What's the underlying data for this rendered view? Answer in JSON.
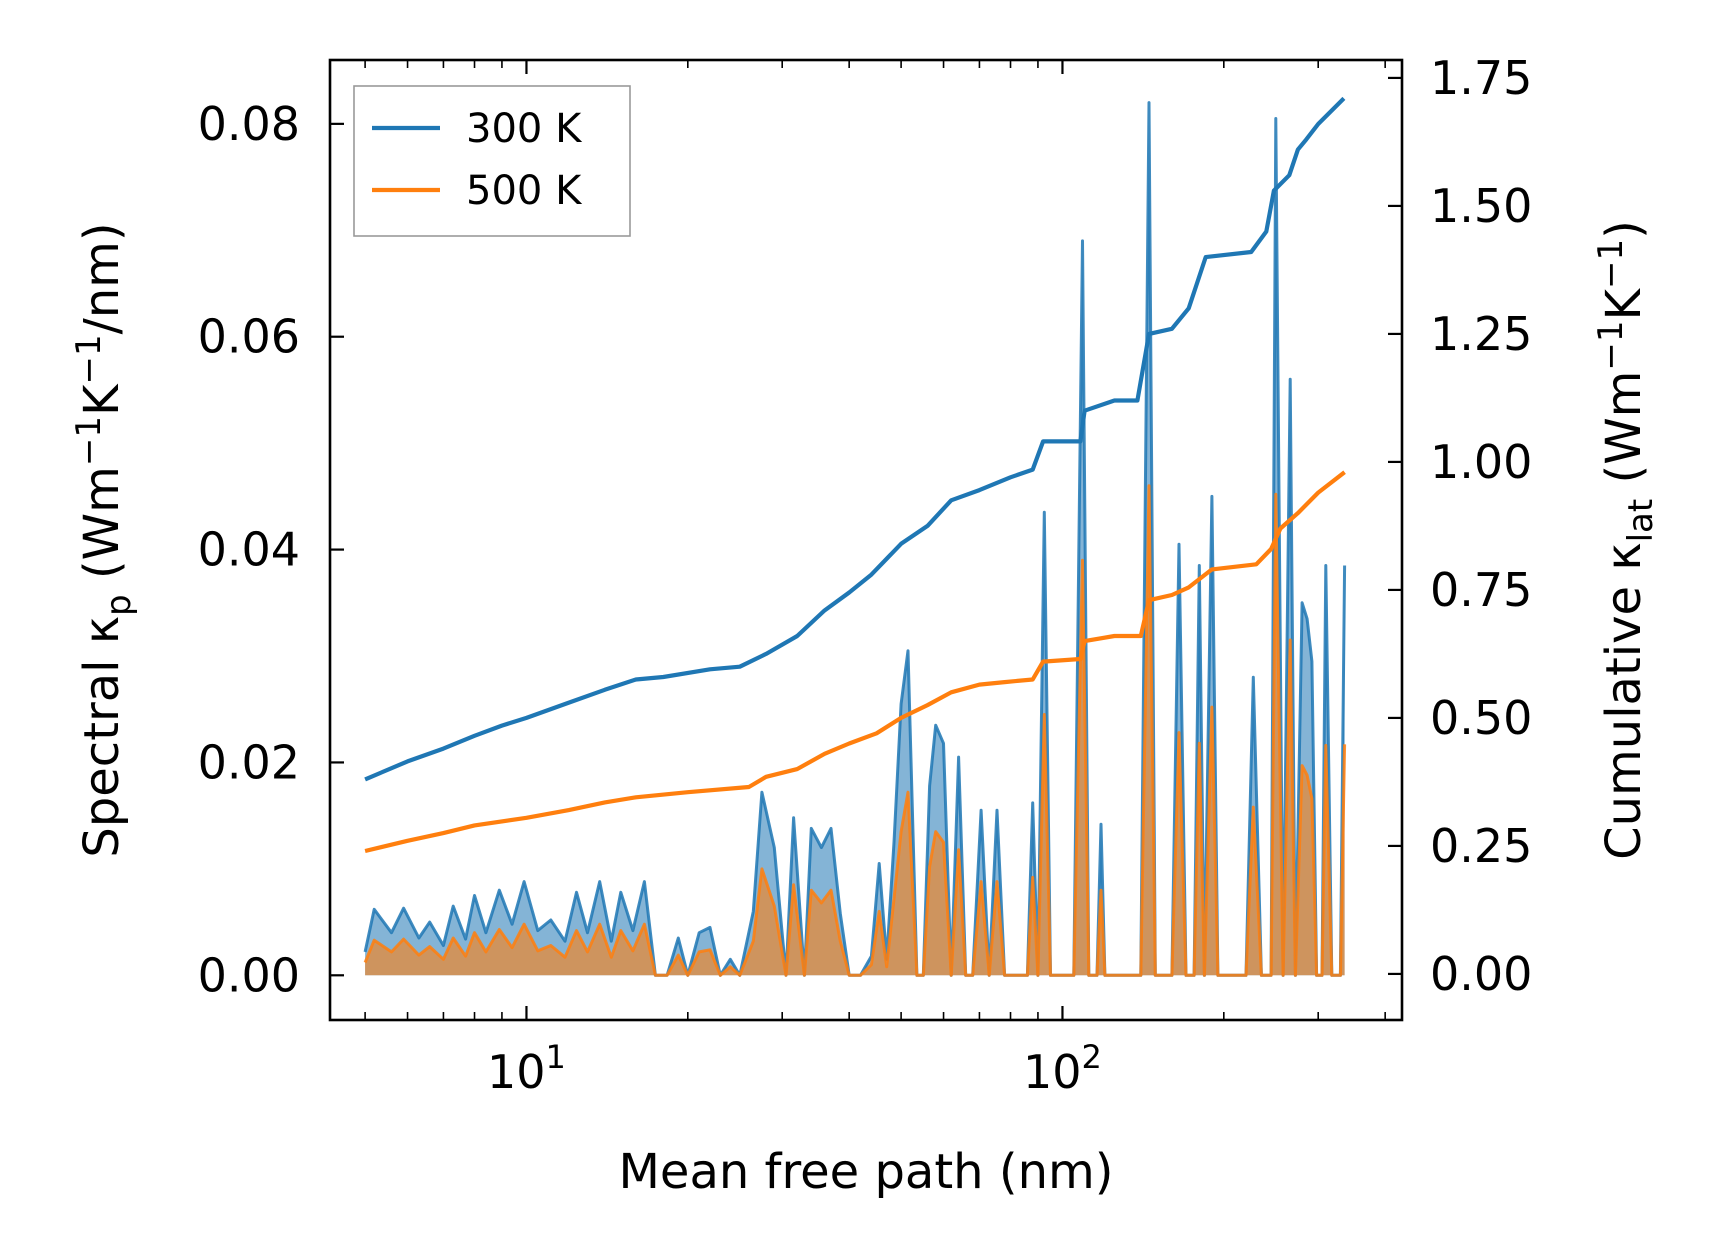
{
  "chart_data": {
    "type": "line",
    "title": "",
    "xlabel": "Mean free path (nm)",
    "xscale": "log",
    "xlim": [
      4.3,
      430
    ],
    "x_ticks": [
      {
        "value": 10,
        "base": "10",
        "exp": "1"
      },
      {
        "value": 100,
        "base": "10",
        "exp": "2"
      }
    ],
    "left_axis": {
      "label_parts": [
        "Spectral κ",
        "p",
        " (Wm",
        "−1",
        "K",
        "−1",
        "/nm)"
      ],
      "ylim": [
        -0.0042,
        0.086
      ],
      "ticks": [
        0.0,
        0.02,
        0.04,
        0.06,
        0.08
      ],
      "tick_labels": [
        "0.00",
        "0.02",
        "0.04",
        "0.06",
        "0.08"
      ]
    },
    "right_axis": {
      "label_parts": [
        "Cumulative κ",
        "lat",
        " (Wm",
        "−1",
        "K",
        "−1",
        ")"
      ],
      "ylim": [
        -0.09,
        1.785
      ],
      "ticks": [
        0,
        0.25,
        0.5,
        0.75,
        1.0,
        1.25,
        1.5,
        1.75
      ],
      "tick_labels": [
        "0.00",
        "0.25",
        "0.50",
        "0.75",
        "1.00",
        "1.25",
        "1.50",
        "1.75"
      ]
    },
    "legend": {
      "position": "top-left",
      "entries": [
        {
          "label": "300 K",
          "color": "#1f77b4"
        },
        {
          "label": "500 K",
          "color": "#ff7f0e"
        }
      ]
    },
    "series": [
      {
        "name": "300 K",
        "color": "#1f77b4",
        "cumulative": [
          [
            5.0,
            0.38
          ],
          [
            6.0,
            0.415
          ],
          [
            7.0,
            0.44
          ],
          [
            8.0,
            0.465
          ],
          [
            9.0,
            0.485
          ],
          [
            10.0,
            0.5
          ],
          [
            12.0,
            0.53
          ],
          [
            14.0,
            0.555
          ],
          [
            16.0,
            0.575
          ],
          [
            18.0,
            0.58
          ],
          [
            22.0,
            0.595
          ],
          [
            25.0,
            0.6
          ],
          [
            28.0,
            0.625
          ],
          [
            32.0,
            0.66
          ],
          [
            36.0,
            0.71
          ],
          [
            40.0,
            0.745
          ],
          [
            44.0,
            0.78
          ],
          [
            50.0,
            0.84
          ],
          [
            56.0,
            0.875
          ],
          [
            62.0,
            0.925
          ],
          [
            70.0,
            0.945
          ],
          [
            80.0,
            0.97
          ],
          [
            88.0,
            0.985
          ],
          [
            92.0,
            1.04
          ],
          [
            108.0,
            1.04
          ],
          [
            110.0,
            1.1
          ],
          [
            125.0,
            1.12
          ],
          [
            138.0,
            1.12
          ],
          [
            145.0,
            1.25
          ],
          [
            160.0,
            1.26
          ],
          [
            172.0,
            1.3
          ],
          [
            185.0,
            1.4
          ],
          [
            225.0,
            1.41
          ],
          [
            240.0,
            1.45
          ],
          [
            248.0,
            1.53
          ],
          [
            265.0,
            1.56
          ],
          [
            275.0,
            1.61
          ],
          [
            285.0,
            1.63
          ],
          [
            300.0,
            1.66
          ],
          [
            335.0,
            1.71
          ]
        ],
        "spectral": [
          [
            5.0,
            0.0022
          ],
          [
            5.2,
            0.0062
          ],
          [
            5.6,
            0.004
          ],
          [
            5.9,
            0.0063
          ],
          [
            6.3,
            0.0035
          ],
          [
            6.6,
            0.005
          ],
          [
            7.0,
            0.0028
          ],
          [
            7.3,
            0.0065
          ],
          [
            7.7,
            0.0034
          ],
          [
            8.0,
            0.0075
          ],
          [
            8.4,
            0.004
          ],
          [
            8.9,
            0.008
          ],
          [
            9.4,
            0.0048
          ],
          [
            9.9,
            0.0088
          ],
          [
            10.5,
            0.0042
          ],
          [
            11.1,
            0.0052
          ],
          [
            11.8,
            0.0032
          ],
          [
            12.4,
            0.0078
          ],
          [
            13.0,
            0.004
          ],
          [
            13.7,
            0.0088
          ],
          [
            14.4,
            0.0032
          ],
          [
            15.0,
            0.0078
          ],
          [
            15.8,
            0.0042
          ],
          [
            16.6,
            0.0088
          ],
          [
            17.4,
            0.0
          ],
          [
            18.3,
            0.0
          ],
          [
            19.2,
            0.0035
          ],
          [
            20.0,
            0.0
          ],
          [
            21.0,
            0.004
          ],
          [
            22.0,
            0.0045
          ],
          [
            23.0,
            0.0
          ],
          [
            24.0,
            0.0015
          ],
          [
            25.0,
            0.0
          ],
          [
            26.5,
            0.006
          ],
          [
            27.5,
            0.0172
          ],
          [
            29.0,
            0.012
          ],
          [
            30.5,
            0.0
          ],
          [
            31.5,
            0.0148
          ],
          [
            33.0,
            0.0
          ],
          [
            34.0,
            0.0138
          ],
          [
            35.5,
            0.012
          ],
          [
            37.0,
            0.0138
          ],
          [
            38.5,
            0.0058
          ],
          [
            40.0,
            0.0
          ],
          [
            42.0,
            0.0
          ],
          [
            44.0,
            0.0018
          ],
          [
            45.5,
            0.0105
          ],
          [
            47.0,
            0.0015
          ],
          [
            48.5,
            0.0125
          ],
          [
            50.0,
            0.0255
          ],
          [
            51.5,
            0.0305
          ],
          [
            53.5,
            0.0
          ],
          [
            55.0,
            0.0
          ],
          [
            56.5,
            0.0178
          ],
          [
            58.0,
            0.0235
          ],
          [
            60.0,
            0.0218
          ],
          [
            62.0,
            0.0
          ],
          [
            64.0,
            0.0205
          ],
          [
            66.0,
            0.0
          ],
          [
            68.0,
            0.0
          ],
          [
            70.5,
            0.0155
          ],
          [
            73.0,
            0.0
          ],
          [
            75.5,
            0.0155
          ],
          [
            78.0,
            0.0
          ],
          [
            83.0,
            0.0
          ],
          [
            86.0,
            0.0
          ],
          [
            88.0,
            0.0162
          ],
          [
            90.0,
            0.0
          ],
          [
            92.5,
            0.0435
          ],
          [
            95.0,
            0.0
          ],
          [
            100.0,
            0.0
          ],
          [
            105.0,
            0.0
          ],
          [
            109.0,
            0.069
          ],
          [
            112.0,
            0.0
          ],
          [
            116.0,
            0.0
          ],
          [
            118.0,
            0.0142
          ],
          [
            120.0,
            0.0
          ],
          [
            140.0,
            0.0
          ],
          [
            145.0,
            0.082
          ],
          [
            149.0,
            0.0
          ],
          [
            160.0,
            0.0
          ],
          [
            165.0,
            0.0405
          ],
          [
            170.0,
            0.0
          ],
          [
            176.0,
            0.0
          ],
          [
            180.0,
            0.0385
          ],
          [
            184.0,
            0.0
          ],
          [
            190.0,
            0.045
          ],
          [
            195.0,
            0.0
          ],
          [
            200.0,
            0.0
          ],
          [
            220.0,
            0.0
          ],
          [
            227.0,
            0.028
          ],
          [
            235.0,
            0.0
          ],
          [
            245.0,
            0.0
          ],
          [
            250.0,
            0.0805
          ],
          [
            258.0,
            0.0
          ],
          [
            266.0,
            0.056
          ],
          [
            272.0,
            0.0
          ],
          [
            280.0,
            0.035
          ],
          [
            286.0,
            0.0335
          ],
          [
            292.0,
            0.0295
          ],
          [
            298.0,
            0.0
          ],
          [
            305.0,
            0.0
          ],
          [
            310.0,
            0.0385
          ],
          [
            318.0,
            0.0
          ],
          [
            330.0,
            0.0
          ],
          [
            336.0,
            0.0385
          ]
        ]
      },
      {
        "name": "500 K",
        "color": "#ff7f0e",
        "cumulative": [
          [
            5.0,
            0.24
          ],
          [
            6.0,
            0.26
          ],
          [
            7.0,
            0.275
          ],
          [
            8.0,
            0.29
          ],
          [
            10.0,
            0.305
          ],
          [
            12.0,
            0.32
          ],
          [
            14.0,
            0.335
          ],
          [
            16.0,
            0.345
          ],
          [
            20.0,
            0.355
          ],
          [
            26.0,
            0.365
          ],
          [
            28.0,
            0.385
          ],
          [
            32.0,
            0.4
          ],
          [
            36.0,
            0.43
          ],
          [
            40.0,
            0.45
          ],
          [
            45.0,
            0.47
          ],
          [
            50.0,
            0.5
          ],
          [
            56.0,
            0.525
          ],
          [
            62.0,
            0.55
          ],
          [
            70.0,
            0.565
          ],
          [
            78.0,
            0.57
          ],
          [
            88.0,
            0.575
          ],
          [
            92.0,
            0.61
          ],
          [
            108.0,
            0.615
          ],
          [
            110.0,
            0.65
          ],
          [
            125.0,
            0.66
          ],
          [
            140.0,
            0.66
          ],
          [
            145.0,
            0.73
          ],
          [
            160.0,
            0.74
          ],
          [
            172.0,
            0.755
          ],
          [
            190.0,
            0.79
          ],
          [
            230.0,
            0.8
          ],
          [
            245.0,
            0.83
          ],
          [
            255.0,
            0.87
          ],
          [
            275.0,
            0.9
          ],
          [
            300.0,
            0.94
          ],
          [
            336.0,
            0.98
          ]
        ],
        "spectral": [
          [
            5.0,
            0.0012
          ],
          [
            5.2,
            0.0033
          ],
          [
            5.6,
            0.0022
          ],
          [
            5.9,
            0.0034
          ],
          [
            6.3,
            0.0019
          ],
          [
            6.6,
            0.0027
          ],
          [
            7.0,
            0.0015
          ],
          [
            7.3,
            0.0035
          ],
          [
            7.7,
            0.0018
          ],
          [
            8.0,
            0.004
          ],
          [
            8.4,
            0.0022
          ],
          [
            8.9,
            0.0043
          ],
          [
            9.4,
            0.0026
          ],
          [
            9.9,
            0.0048
          ],
          [
            10.5,
            0.0023
          ],
          [
            11.1,
            0.0028
          ],
          [
            11.8,
            0.0017
          ],
          [
            12.4,
            0.0042
          ],
          [
            13.0,
            0.0022
          ],
          [
            13.7,
            0.0048
          ],
          [
            14.4,
            0.0017
          ],
          [
            15.0,
            0.0042
          ],
          [
            15.8,
            0.0023
          ],
          [
            16.6,
            0.0048
          ],
          [
            17.4,
            0.0
          ],
          [
            18.3,
            0.0
          ],
          [
            19.2,
            0.0019
          ],
          [
            20.0,
            0.0
          ],
          [
            21.0,
            0.0022
          ],
          [
            22.0,
            0.0024
          ],
          [
            23.0,
            0.0
          ],
          [
            24.0,
            0.0008
          ],
          [
            25.0,
            0.0
          ],
          [
            26.5,
            0.0032
          ],
          [
            27.5,
            0.01
          ],
          [
            29.0,
            0.0065
          ],
          [
            30.5,
            0.0
          ],
          [
            31.5,
            0.0085
          ],
          [
            33.0,
            0.0
          ],
          [
            34.0,
            0.008
          ],
          [
            35.5,
            0.0068
          ],
          [
            37.0,
            0.008
          ],
          [
            38.5,
            0.0032
          ],
          [
            40.0,
            0.0
          ],
          [
            42.0,
            0.0
          ],
          [
            44.0,
            0.001
          ],
          [
            45.5,
            0.006
          ],
          [
            47.0,
            0.0008
          ],
          [
            48.5,
            0.0072
          ],
          [
            50.0,
            0.0135
          ],
          [
            51.5,
            0.0172
          ],
          [
            53.5,
            0.0
          ],
          [
            55.0,
            0.0
          ],
          [
            56.5,
            0.0102
          ],
          [
            58.0,
            0.0135
          ],
          [
            60.0,
            0.0125
          ],
          [
            62.0,
            0.0
          ],
          [
            64.0,
            0.0118
          ],
          [
            66.0,
            0.0
          ],
          [
            68.0,
            0.0
          ],
          [
            70.5,
            0.0088
          ],
          [
            73.0,
            0.0
          ],
          [
            75.5,
            0.0088
          ],
          [
            78.0,
            0.0
          ],
          [
            83.0,
            0.0
          ],
          [
            86.0,
            0.0
          ],
          [
            88.0,
            0.0092
          ],
          [
            90.0,
            0.0
          ],
          [
            92.5,
            0.0245
          ],
          [
            95.0,
            0.0
          ],
          [
            100.0,
            0.0
          ],
          [
            105.0,
            0.0
          ],
          [
            109.0,
            0.039
          ],
          [
            112.0,
            0.0
          ],
          [
            116.0,
            0.0
          ],
          [
            118.0,
            0.008
          ],
          [
            120.0,
            0.0
          ],
          [
            140.0,
            0.0
          ],
          [
            145.0,
            0.046
          ],
          [
            149.0,
            0.0
          ],
          [
            160.0,
            0.0
          ],
          [
            165.0,
            0.0228
          ],
          [
            170.0,
            0.0
          ],
          [
            176.0,
            0.0
          ],
          [
            180.0,
            0.0218
          ],
          [
            184.0,
            0.0
          ],
          [
            190.0,
            0.0252
          ],
          [
            195.0,
            0.0
          ],
          [
            200.0,
            0.0
          ],
          [
            220.0,
            0.0
          ],
          [
            227.0,
            0.0158
          ],
          [
            235.0,
            0.0
          ],
          [
            245.0,
            0.0
          ],
          [
            250.0,
            0.0452
          ],
          [
            258.0,
            0.0
          ],
          [
            266.0,
            0.0315
          ],
          [
            272.0,
            0.0
          ],
          [
            280.0,
            0.0197
          ],
          [
            286.0,
            0.0188
          ],
          [
            292.0,
            0.0166
          ],
          [
            298.0,
            0.0
          ],
          [
            305.0,
            0.0
          ],
          [
            310.0,
            0.0216
          ],
          [
            318.0,
            0.0
          ],
          [
            330.0,
            0.0
          ],
          [
            336.0,
            0.0217
          ]
        ]
      }
    ]
  }
}
